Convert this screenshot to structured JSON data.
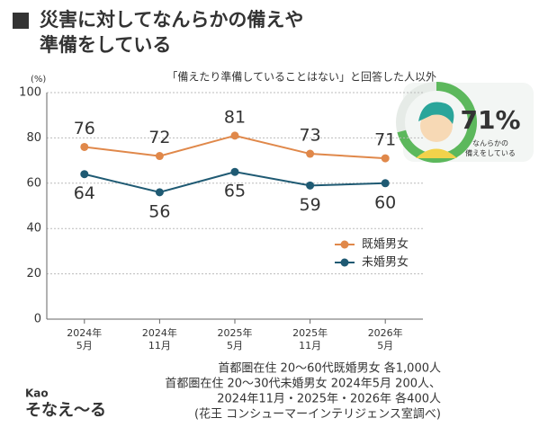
{
  "chart_data": {
    "type": "line",
    "title": "災害に対してなんらかの備えや\n準備をしている",
    "note": "「備えたり準備していることはない」と回答した人以外",
    "y_unit": "(%)",
    "categories": [
      "2024年\n5月",
      "2024年\n11月",
      "2025年\n5月",
      "2025年\n11月",
      "2026年\n5月"
    ],
    "series": [
      {
        "name": "既婚男女",
        "color": "#e0884a",
        "values": [
          76,
          72,
          81,
          73,
          71
        ]
      },
      {
        "name": "未婚男女",
        "color": "#1f5a73",
        "values": [
          64,
          56,
          65,
          59,
          60
        ]
      }
    ],
    "ylim": [
      0,
      100
    ],
    "yticks": [
      0,
      20,
      40,
      60,
      80,
      100
    ],
    "grid": true,
    "badge": {
      "value": 71,
      "label": "71%",
      "text": "なんらかの\n備えをしている",
      "color": "#5cb85c"
    },
    "source": [
      "首都圏在住 20〜60代既婚男女 各1,000人",
      "首都圏在住 20〜30代未婚男女 2024年5月 200人、",
      "2024年11月・2025年・2026年 各400人",
      "(花王 コンシューマーインテリジェンス室調べ)"
    ],
    "brand": "Kao",
    "logo": "そなえ〜る"
  }
}
